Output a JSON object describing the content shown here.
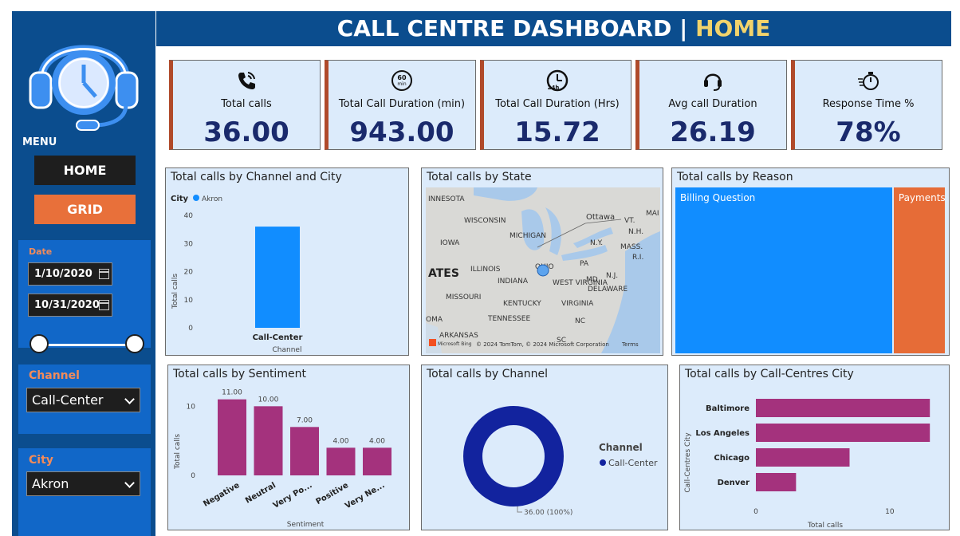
{
  "header": {
    "title_main": "CALL CENTRE DASHBOARD | ",
    "title_accent": "HOME"
  },
  "sidebar": {
    "menu_label": "MENU",
    "nav": {
      "home": "HOME",
      "grid": "GRID"
    },
    "date": {
      "title": "Date",
      "start": "1/10/2020",
      "end": "10/31/2020"
    },
    "channel": {
      "title": "Channel",
      "value": "Call-Center"
    },
    "city": {
      "title": "City",
      "value": "Akron"
    }
  },
  "kpis": [
    {
      "label": "Total calls",
      "value": "36.00",
      "icon": "phone-icon"
    },
    {
      "label": "Total Call Duration (min)",
      "value": "943.00",
      "icon": "timer-60-icon"
    },
    {
      "label": "Total Call Duration (Hrs)",
      "value": "15.72",
      "icon": "clock-24h-icon"
    },
    {
      "label": "Avg call Duration",
      "value": "26.19",
      "icon": "headset-icon"
    },
    {
      "label": "Response Time %",
      "value": "78%",
      "icon": "stopwatch-icon"
    }
  ],
  "cards": {
    "channel_city": {
      "title": "Total calls by Channel and City",
      "legend_title": "City",
      "legend_item": "Akron",
      "ylabel": "Total calls",
      "xlabel": "Channel"
    },
    "state": {
      "title": "Total calls by State",
      "labels": {
        "mn": "INNESOTA",
        "wi": "WISCONSIN",
        "mi": "MICHIGAN",
        "ia": "IOWA",
        "us": "ATES",
        "il": "ILLINOIS",
        "in": "INDIANA",
        "oh": "OHIO",
        "pa": "PA",
        "mo": "MISSOURI",
        "ky": "KENTUCKY",
        "wv": "WEST\nVIRGINIA",
        "va": "VIRGINIA",
        "tn": "TENNESSEE",
        "nc": "NC",
        "ar": "ARKANSAS",
        "sc": "SC",
        "ok": "OMA",
        "ottawa": "Ottawa",
        "ny": "N.Y.",
        "vt": "VT.",
        "nh": "N.H.",
        "mass": "MASS.",
        "ri": "R.I.",
        "nj": "N.J.",
        "md": "MD.",
        "de": "DELAWARE",
        "ma": "MAI"
      },
      "attribution": "© 2024 TomTom, © 2024 Microsoft Corporation",
      "terms": "Terms",
      "bing": "Microsoft Bing"
    },
    "reason": {
      "title": "Total calls by Reason",
      "items": [
        "Billing Question",
        "Payments"
      ]
    },
    "sentiment": {
      "title": "Total calls by Sentiment",
      "ylabel": "Total calls",
      "xlabel": "Sentiment"
    },
    "channel": {
      "title": "Total calls by Channel",
      "legend_title": "Channel",
      "legend_item": "Call-Center",
      "data_label": "36.00 (100%)"
    },
    "city_bar": {
      "title": "Total calls by Call-Centres City",
      "ylabel": "Call-Centres City",
      "xlabel": "Total calls"
    }
  },
  "colors": {
    "navy": "#0b4d8e",
    "accent_gold": "#f2d36b",
    "blue": "#118dff",
    "orange": "#e66c37",
    "magenta": "#a4327d",
    "donut": "#12239e"
  },
  "chart_data": [
    {
      "type": "bar",
      "title": "Total calls by Channel and City",
      "categories": [
        "Call-Center"
      ],
      "series": [
        {
          "name": "Akron",
          "values": [
            36
          ]
        }
      ],
      "xlabel": "Channel",
      "ylabel": "Total calls",
      "ylim": [
        0,
        40
      ],
      "yticks": [
        0,
        10,
        20,
        30,
        40
      ]
    },
    {
      "type": "heatmap",
      "title": "Total calls by Reason",
      "categories": [
        "Billing Question",
        "Payments"
      ],
      "values": [
        29,
        7
      ]
    },
    {
      "type": "bar",
      "title": "Total calls by Sentiment",
      "categories": [
        "Negative",
        "Neutral",
        "Very Po...",
        "Positive",
        "Very Ne..."
      ],
      "values": [
        11,
        10,
        7,
        4,
        4
      ],
      "data_labels": [
        "11.00",
        "10.00",
        "7.00",
        "4.00",
        "4.00"
      ],
      "xlabel": "Sentiment",
      "ylabel": "Total calls",
      "ylim": [
        0,
        12
      ],
      "yticks": [
        0,
        10
      ]
    },
    {
      "type": "pie",
      "title": "Total calls by Channel",
      "categories": [
        "Call-Center"
      ],
      "values": [
        36
      ],
      "data_labels": [
        "36.00 (100%)"
      ]
    },
    {
      "type": "bar",
      "title": "Total calls by Call-Centres City",
      "categories": [
        "Baltimore",
        "Los Angeles",
        "Chicago",
        "Denver"
      ],
      "values": [
        13,
        13,
        7,
        3
      ],
      "xlabel": "Total calls",
      "ylabel": "Call-Centres City",
      "xlim": [
        0,
        14
      ],
      "xticks": [
        0,
        10
      ]
    }
  ]
}
